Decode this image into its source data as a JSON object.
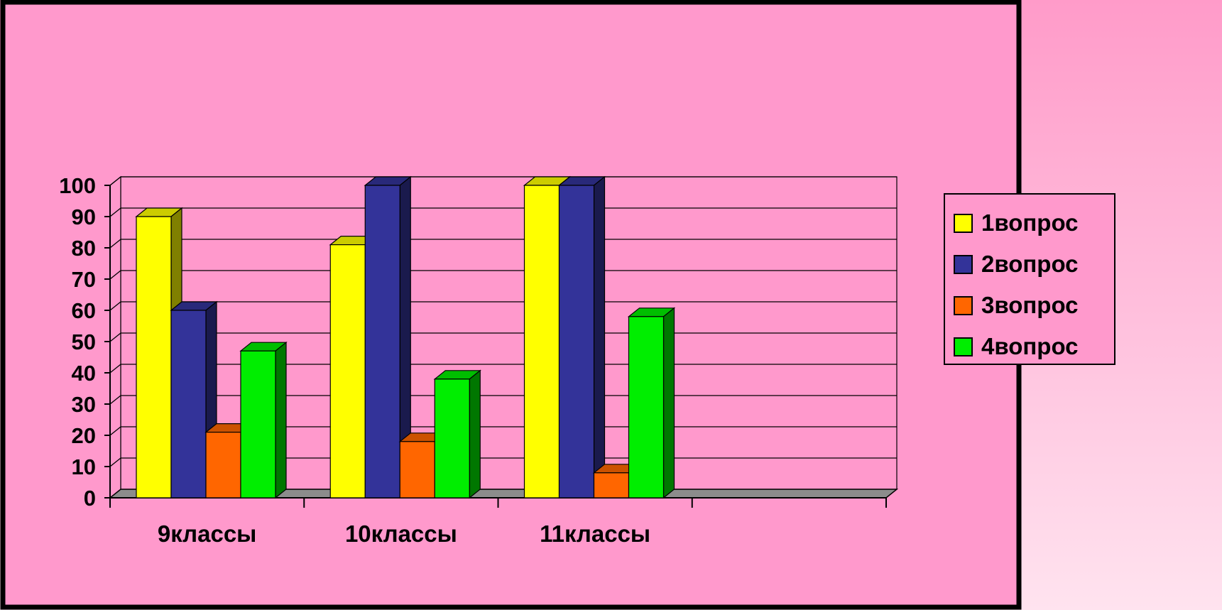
{
  "chart_data": {
    "type": "bar",
    "three_d": true,
    "categories": [
      "9классы",
      "10классы",
      "11классы"
    ],
    "series": [
      {
        "name": "1вопрос",
        "values": [
          90,
          81,
          100
        ],
        "color": "#ffff00"
      },
      {
        "name": "2вопрос",
        "values": [
          60,
          100,
          100
        ],
        "color": "#333399"
      },
      {
        "name": "3вопрос",
        "values": [
          21,
          18,
          8
        ],
        "color": "#ff6600"
      },
      {
        "name": "4вопрос",
        "values": [
          47,
          38,
          58
        ],
        "color": "#00ee00"
      }
    ],
    "ylim": [
      0,
      100
    ],
    "yticks": [
      0,
      10,
      20,
      30,
      40,
      50,
      60,
      70,
      80,
      90,
      100
    ],
    "grid": true,
    "legend_position": "right",
    "plot_background": "#ff99cc",
    "title": "",
    "xlabel": "",
    "ylabel": ""
  }
}
